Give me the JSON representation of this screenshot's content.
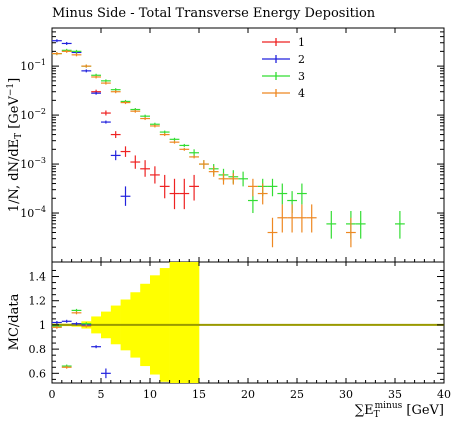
{
  "chart_data": [
    {
      "type": "scatter",
      "title": "Minus Side - Total Transverse Energy Deposition",
      "ylabel": "1/N, dN/dE_T [GeV^-1]",
      "xlabel": "",
      "xlim": [
        0,
        40
      ],
      "ylim": [
        1e-05,
        0.6
      ],
      "yscale": "log",
      "y_ticks": [
        {
          "value": 0.0001,
          "label": "10^-4"
        },
        {
          "value": 0.001,
          "label": "10^-3"
        },
        {
          "value": 0.01,
          "label": "10^-2"
        },
        {
          "value": 0.1,
          "label": "10^-1"
        }
      ],
      "legend_position": "top-right",
      "series": [
        {
          "name": "1",
          "color": "#ee2222",
          "points": [
            {
              "x": 4.5,
              "y": 0.03,
              "xerr": 0.5,
              "ylo": 0.027,
              "yhi": 0.033
            },
            {
              "x": 5.5,
              "y": 0.011,
              "xerr": 0.5,
              "ylo": 0.0098,
              "yhi": 0.0124
            },
            {
              "x": 6.5,
              "y": 0.004,
              "xerr": 0.5,
              "ylo": 0.0034,
              "yhi": 0.0047
            },
            {
              "x": 7.5,
              "y": 0.0018,
              "xerr": 0.5,
              "ylo": 0.0014,
              "yhi": 0.0023
            },
            {
              "x": 8.5,
              "y": 0.0011,
              "xerr": 0.5,
              "ylo": 0.0008,
              "yhi": 0.0015
            },
            {
              "x": 9.5,
              "y": 0.0008,
              "xerr": 0.5,
              "ylo": 0.00055,
              "yhi": 0.0012
            },
            {
              "x": 10.5,
              "y": 0.0006,
              "xerr": 0.5,
              "ylo": 0.0004,
              "yhi": 0.0009
            },
            {
              "x": 11.5,
              "y": 0.00035,
              "xerr": 0.5,
              "ylo": 0.0002,
              "yhi": 0.0006
            },
            {
              "x": 12.5,
              "y": 0.00025,
              "xerr": 0.5,
              "ylo": 0.00012,
              "yhi": 0.0005
            },
            {
              "x": 13.5,
              "y": 0.00025,
              "xerr": 0.5,
              "ylo": 0.00012,
              "yhi": 0.0005
            },
            {
              "x": 14.5,
              "y": 0.00035,
              "xerr": 0.5,
              "ylo": 0.00018,
              "yhi": 0.0006
            }
          ]
        },
        {
          "name": "2",
          "color": "#2222dd",
          "points": [
            {
              "x": 0.5,
              "y": 0.33,
              "xerr": 0.5
            },
            {
              "x": 1.5,
              "y": 0.29,
              "xerr": 0.5
            },
            {
              "x": 2.5,
              "y": 0.19,
              "xerr": 0.5
            },
            {
              "x": 3.5,
              "y": 0.08,
              "xerr": 0.5
            },
            {
              "x": 4.5,
              "y": 0.028,
              "xerr": 0.5
            },
            {
              "x": 5.5,
              "y": 0.0072,
              "xerr": 0.5
            },
            {
              "x": 6.5,
              "y": 0.0015,
              "xerr": 0.5,
              "ylo": 0.0012,
              "yhi": 0.0019
            },
            {
              "x": 7.5,
              "y": 0.00022,
              "xerr": 0.5,
              "ylo": 0.00014,
              "yhi": 0.00035
            }
          ]
        },
        {
          "name": "3",
          "color": "#33dd33",
          "points": [
            {
              "x": 0.5,
              "y": 0.18,
              "xerr": 0.5
            },
            {
              "x": 1.5,
              "y": 0.21,
              "xerr": 0.5
            },
            {
              "x": 2.5,
              "y": 0.2,
              "xerr": 0.5
            },
            {
              "x": 3.5,
              "y": 0.1,
              "xerr": 0.5
            },
            {
              "x": 4.5,
              "y": 0.065,
              "xerr": 0.5
            },
            {
              "x": 5.5,
              "y": 0.05,
              "xerr": 0.5
            },
            {
              "x": 6.5,
              "y": 0.033,
              "xerr": 0.5
            },
            {
              "x": 7.5,
              "y": 0.019,
              "xerr": 0.5
            },
            {
              "x": 8.5,
              "y": 0.013,
              "xerr": 0.5
            },
            {
              "x": 9.5,
              "y": 0.0095,
              "xerr": 0.5
            },
            {
              "x": 10.5,
              "y": 0.0065,
              "xerr": 0.5
            },
            {
              "x": 11.5,
              "y": 0.0045,
              "xerr": 0.5
            },
            {
              "x": 12.5,
              "y": 0.0032,
              "xerr": 0.5
            },
            {
              "x": 13.5,
              "y": 0.0024,
              "xerr": 0.5
            },
            {
              "x": 14.5,
              "y": 0.0017,
              "xerr": 0.5,
              "ylo": 0.0014,
              "yhi": 0.002
            },
            {
              "x": 15.5,
              "y": 0.001,
              "xerr": 0.5,
              "ylo": 0.0008,
              "yhi": 0.0012
            },
            {
              "x": 16.5,
              "y": 0.0008,
              "xerr": 0.5,
              "ylo": 0.0006,
              "yhi": 0.001
            },
            {
              "x": 17.5,
              "y": 0.0006,
              "xerr": 0.5,
              "ylo": 0.00045,
              "yhi": 0.0008
            },
            {
              "x": 18.5,
              "y": 0.00055,
              "xerr": 0.5,
              "ylo": 0.0004,
              "yhi": 0.00075
            },
            {
              "x": 19.5,
              "y": 0.0005,
              "xerr": 0.5,
              "ylo": 0.00035,
              "yhi": 0.0007
            },
            {
              "x": 20.5,
              "y": 0.00018,
              "xerr": 0.5,
              "ylo": 0.0001,
              "yhi": 0.0003
            },
            {
              "x": 21.5,
              "y": 0.00035,
              "xerr": 0.5,
              "ylo": 0.00022,
              "yhi": 0.0005
            },
            {
              "x": 22.5,
              "y": 0.00035,
              "xerr": 0.5,
              "ylo": 0.00022,
              "yhi": 0.0005
            },
            {
              "x": 23.5,
              "y": 0.00025,
              "xerr": 0.5,
              "ylo": 0.00015,
              "yhi": 0.0004
            },
            {
              "x": 24.5,
              "y": 0.00018,
              "xerr": 0.5,
              "ylo": 0.0001,
              "yhi": 0.00028
            },
            {
              "x": 25.5,
              "y": 0.00025,
              "xerr": 0.5,
              "ylo": 0.00015,
              "yhi": 0.0004
            },
            {
              "x": 28.5,
              "y": 6e-05,
              "xerr": 0.5,
              "ylo": 3e-05,
              "yhi": 0.00011
            },
            {
              "x": 30.5,
              "y": 6e-05,
              "xerr": 0.5,
              "ylo": 3e-05,
              "yhi": 0.00011
            },
            {
              "x": 31.5,
              "y": 6e-05,
              "xerr": 0.5,
              "ylo": 3e-05,
              "yhi": 0.00011
            },
            {
              "x": 35.5,
              "y": 6e-05,
              "xerr": 0.5,
              "ylo": 3e-05,
              "yhi": 0.00011
            }
          ]
        },
        {
          "name": "4",
          "color": "#ee8822",
          "points": [
            {
              "x": 0.5,
              "y": 0.18,
              "xerr": 0.5
            },
            {
              "x": 1.5,
              "y": 0.2,
              "xerr": 0.5
            },
            {
              "x": 2.5,
              "y": 0.17,
              "xerr": 0.5
            },
            {
              "x": 3.5,
              "y": 0.1,
              "xerr": 0.5
            },
            {
              "x": 4.5,
              "y": 0.06,
              "xerr": 0.5
            },
            {
              "x": 5.5,
              "y": 0.045,
              "xerr": 0.5
            },
            {
              "x": 6.5,
              "y": 0.03,
              "xerr": 0.5
            },
            {
              "x": 7.5,
              "y": 0.018,
              "xerr": 0.5
            },
            {
              "x": 8.5,
              "y": 0.012,
              "xerr": 0.5
            },
            {
              "x": 9.5,
              "y": 0.0085,
              "xerr": 0.5
            },
            {
              "x": 10.5,
              "y": 0.006,
              "xerr": 0.5
            },
            {
              "x": 11.5,
              "y": 0.004,
              "xerr": 0.5
            },
            {
              "x": 12.5,
              "y": 0.0028,
              "xerr": 0.5
            },
            {
              "x": 13.5,
              "y": 0.002,
              "xerr": 0.5
            },
            {
              "x": 14.5,
              "y": 0.0014,
              "xerr": 0.5
            },
            {
              "x": 15.5,
              "y": 0.001,
              "xerr": 0.5,
              "ylo": 0.0008,
              "yhi": 0.0012
            },
            {
              "x": 16.5,
              "y": 0.0007,
              "xerr": 0.5,
              "ylo": 0.00055,
              "yhi": 0.0009
            },
            {
              "x": 17.5,
              "y": 0.0005,
              "xerr": 0.5,
              "ylo": 0.00038,
              "yhi": 0.00065
            },
            {
              "x": 18.5,
              "y": 0.0005,
              "xerr": 0.5,
              "ylo": 0.00038,
              "yhi": 0.00065
            },
            {
              "x": 20.5,
              "y": 0.00035,
              "xerr": 0.5,
              "ylo": 0.00022,
              "yhi": 0.0005
            },
            {
              "x": 21.5,
              "y": 0.00025,
              "xerr": 0.5,
              "ylo": 0.00015,
              "yhi": 0.0004
            },
            {
              "x": 22.5,
              "y": 4e-05,
              "xerr": 0.5,
              "ylo": 2e-05,
              "yhi": 8e-05
            },
            {
              "x": 23.5,
              "y": 8e-05,
              "xerr": 0.5,
              "ylo": 4e-05,
              "yhi": 0.00015
            },
            {
              "x": 24.5,
              "y": 8e-05,
              "xerr": 0.5,
              "ylo": 4e-05,
              "yhi": 0.00015
            },
            {
              "x": 25.5,
              "y": 8e-05,
              "xerr": 0.5,
              "ylo": 4e-05,
              "yhi": 0.00015
            },
            {
              "x": 26.5,
              "y": 8e-05,
              "xerr": 0.5,
              "ylo": 4e-05,
              "yhi": 0.00015
            },
            {
              "x": 30.5,
              "y": 4e-05,
              "xerr": 0.5,
              "ylo": 2e-05,
              "yhi": 8e-05
            }
          ]
        }
      ]
    },
    {
      "type": "scatter",
      "ylabel": "MC/data",
      "xlabel": "∑E_T^minus [GeV]",
      "xlim": [
        0,
        40
      ],
      "ylim": [
        0.52,
        1.52
      ],
      "x_ticks": [
        0,
        5,
        10,
        15,
        20,
        25,
        30,
        35,
        40
      ],
      "y_ticks": [
        0.6,
        0.8,
        1,
        1.2,
        1.4
      ],
      "reference_line": {
        "y": 1,
        "color": "#999900"
      },
      "uncertainty_band": {
        "color": "#ffff00",
        "bins": [
          {
            "x0": 0,
            "x1": 1,
            "lo": 0.99,
            "hi": 1.01
          },
          {
            "x0": 1,
            "x1": 2,
            "lo": 0.99,
            "hi": 1.01
          },
          {
            "x0": 2,
            "x1": 3,
            "lo": 0.985,
            "hi": 1.015
          },
          {
            "x0": 3,
            "x1": 4,
            "lo": 0.97,
            "hi": 1.03
          },
          {
            "x0": 4,
            "x1": 5,
            "lo": 0.93,
            "hi": 1.07
          },
          {
            "x0": 5,
            "x1": 6,
            "lo": 0.89,
            "hi": 1.11
          },
          {
            "x0": 6,
            "x1": 7,
            "lo": 0.84,
            "hi": 1.16
          },
          {
            "x0": 7,
            "x1": 8,
            "lo": 0.79,
            "hi": 1.21
          },
          {
            "x0": 8,
            "x1": 9,
            "lo": 0.73,
            "hi": 1.27
          },
          {
            "x0": 9,
            "x1": 10,
            "lo": 0.66,
            "hi": 1.34
          },
          {
            "x0": 10,
            "x1": 11,
            "lo": 0.59,
            "hi": 1.41
          },
          {
            "x0": 11,
            "x1": 12,
            "lo": 0.53,
            "hi": 1.47
          },
          {
            "x0": 12,
            "x1": 13,
            "lo": 0.5,
            "hi": 1.52
          },
          {
            "x0": 13,
            "x1": 14,
            "lo": 0.5,
            "hi": 1.52
          },
          {
            "x0": 14,
            "x1": 15,
            "lo": 0.5,
            "hi": 1.52
          }
        ]
      },
      "series": [
        {
          "name": "1",
          "color": "#ee2222",
          "points": []
        },
        {
          "name": "2",
          "color": "#2222dd",
          "points": [
            {
              "x": 0.5,
              "y": 1.02,
              "xerr": 0.5
            },
            {
              "x": 1.5,
              "y": 1.03,
              "xerr": 0.5
            },
            {
              "x": 2.5,
              "y": 1.01,
              "xerr": 0.5
            },
            {
              "x": 3.5,
              "y": 1.0,
              "xerr": 0.5
            },
            {
              "x": 4.5,
              "y": 0.82,
              "xerr": 0.5
            },
            {
              "x": 5.5,
              "y": 0.6,
              "xerr": 0.5,
              "ylo": 0.56,
              "yhi": 0.64
            }
          ]
        },
        {
          "name": "3",
          "color": "#33dd33",
          "points": [
            {
              "x": 0.5,
              "y": 0.99,
              "xerr": 0.5
            },
            {
              "x": 1.5,
              "y": 0.66,
              "xerr": 0.5
            },
            {
              "x": 2.5,
              "y": 1.12,
              "xerr": 0.5
            },
            {
              "x": 3.5,
              "y": 1.01,
              "xerr": 0.5
            }
          ]
        },
        {
          "name": "4",
          "color": "#ee8822",
          "points": [
            {
              "x": 0.5,
              "y": 0.98,
              "xerr": 0.5
            },
            {
              "x": 1.5,
              "y": 0.65,
              "xerr": 0.5
            },
            {
              "x": 2.5,
              "y": 1.1,
              "xerr": 0.5
            },
            {
              "x": 3.5,
              "y": 0.99,
              "xerr": 0.5
            }
          ]
        }
      ]
    }
  ]
}
